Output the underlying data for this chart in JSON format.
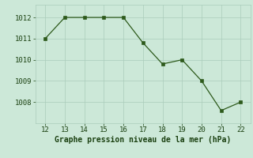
{
  "x": [
    12,
    13,
    14,
    15,
    16,
    17,
    18,
    19,
    20,
    21,
    22
  ],
  "y": [
    1011.0,
    1012.0,
    1012.0,
    1012.0,
    1012.0,
    1010.8,
    1009.8,
    1010.0,
    1009.0,
    1007.6,
    1008.0
  ],
  "line_color": "#2d5a1b",
  "marker": "s",
  "marker_size": 2.5,
  "bg_color": "#cce8d8",
  "grid_color": "#aaccbb",
  "xlabel": "Graphe pression niveau de la mer (hPa)",
  "xlabel_color": "#1a4010",
  "xlabel_fontsize": 7.0,
  "tick_color": "#1a4010",
  "tick_fontsize": 6.5,
  "ylim": [
    1007.0,
    1012.6
  ],
  "xlim": [
    11.5,
    22.5
  ],
  "yticks": [
    1008,
    1009,
    1010,
    1011,
    1012
  ],
  "xticks": [
    12,
    13,
    14,
    15,
    16,
    17,
    18,
    19,
    20,
    21,
    22
  ]
}
